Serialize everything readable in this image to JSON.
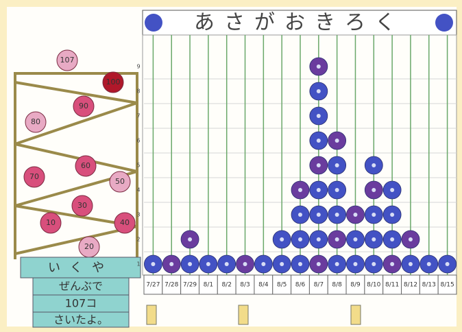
{
  "chart_data": {
    "type": "pictograph",
    "title": "あさがおきろく",
    "categories": [
      "7/27",
      "7/28",
      "7/29",
      "8/1",
      "8/2",
      "8/3",
      "8/4",
      "8/5",
      "8/6",
      "8/7",
      "8/8",
      "8/9",
      "8/10",
      "8/11",
      "8/12",
      "8/13",
      "8/15"
    ],
    "values": [
      1,
      1,
      2,
      1,
      1,
      1,
      1,
      2,
      4,
      9,
      6,
      3,
      5,
      4,
      2,
      1,
      1
    ],
    "ylim": [
      0.5,
      9.5
    ],
    "yticks": [
      1,
      2,
      3,
      4,
      5,
      6,
      7,
      8,
      9
    ],
    "flower_colors": [
      "#4352c4",
      "#6a3c9e"
    ],
    "grid": true
  },
  "trellis": {
    "flowers": [
      "107",
      "100",
      "90",
      "80",
      "70",
      "60",
      "50",
      "40",
      "30",
      "20",
      "10"
    ]
  },
  "note": {
    "lines": [
      "いくや",
      "ぜんぶで",
      "107コ",
      "さいたよ。"
    ]
  }
}
